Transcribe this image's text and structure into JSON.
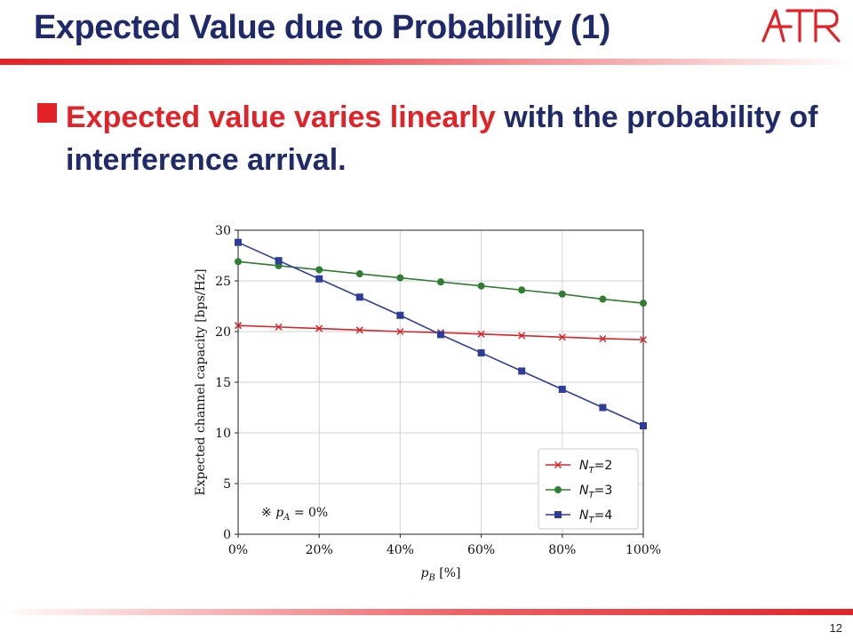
{
  "slide": {
    "title": "Expected Value due to Probability (1)",
    "logo_text": "ATR",
    "bullet": {
      "highlight": "Expected value varies linearly",
      "rest": " with the probability of interference arrival."
    },
    "page_number": "12"
  },
  "colors": {
    "title": "#1f2a6b",
    "accent": "#e32227",
    "series": [
      "#d62728",
      "#2e7d32",
      "#2f3d9a"
    ]
  },
  "chart_data": {
    "type": "line",
    "xlabel": "p_B [%]",
    "ylabel": "Expected channel capacity [bps/Hz]",
    "x": [
      0,
      10,
      20,
      30,
      40,
      50,
      60,
      70,
      80,
      90,
      100
    ],
    "x_tick_values": [
      0,
      20,
      40,
      60,
      80,
      100
    ],
    "x_tick_labels": [
      "0%",
      "20%",
      "40%",
      "60%",
      "80%",
      "100%"
    ],
    "y_ticks": [
      0,
      5,
      10,
      15,
      20,
      25,
      30
    ],
    "xlim": [
      0,
      100
    ],
    "ylim": [
      0,
      30
    ],
    "grid": true,
    "legend_position": "bottom-right",
    "annotation": "※ p_A = 0%",
    "series": [
      {
        "name": "N_T=2",
        "marker": "x",
        "color": "#d62728",
        "values": [
          20.6,
          20.45,
          20.3,
          20.15,
          20.0,
          19.9,
          19.75,
          19.6,
          19.45,
          19.3,
          19.2
        ]
      },
      {
        "name": "N_T=3",
        "marker": "circle",
        "color": "#2e7d32",
        "values": [
          26.9,
          26.5,
          26.1,
          25.7,
          25.3,
          24.9,
          24.5,
          24.1,
          23.7,
          23.2,
          22.8
        ]
      },
      {
        "name": "N_T=4",
        "marker": "square",
        "color": "#2f3d9a",
        "values": [
          28.8,
          27.0,
          25.2,
          23.4,
          21.6,
          19.7,
          17.9,
          16.1,
          14.3,
          12.5,
          10.7
        ]
      }
    ]
  }
}
